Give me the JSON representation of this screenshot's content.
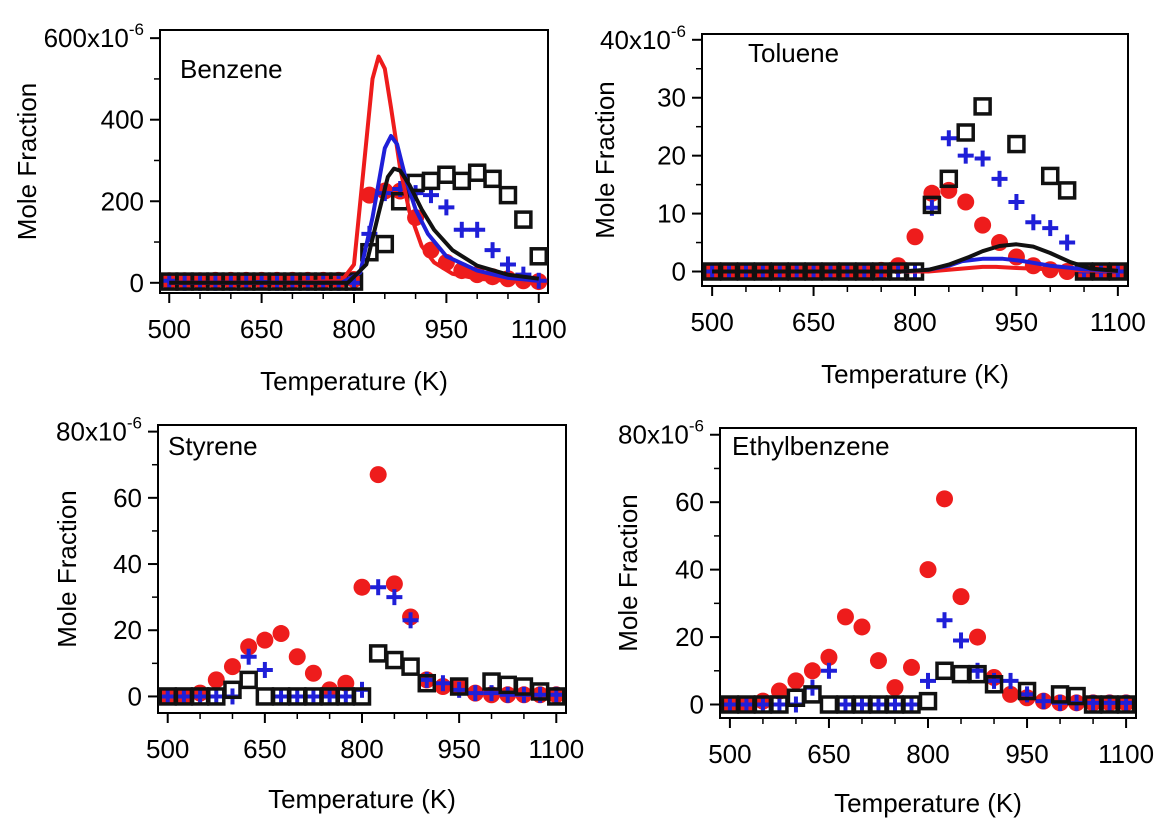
{
  "chart_data": [
    {
      "type": "scatter",
      "title": "Benzene",
      "xlabel": "Temperature (K)",
      "ylabel": "Mole Fraction",
      "xlim": [
        485,
        1115
      ],
      "ylim": [
        -25,
        620
      ],
      "xticks": [
        500,
        650,
        800,
        950,
        1100
      ],
      "xtick_labels": [
        "500",
        "650",
        "800",
        "950",
        "1100"
      ],
      "yticks": [
        0,
        200,
        400,
        600
      ],
      "ytick_labels": [
        "0",
        "200",
        "400",
        "600x10"
      ],
      "ytick_exponent": "-6",
      "series": [
        {
          "marker": "circle",
          "color": "#ee1c1c",
          "x": [
            500,
            525,
            550,
            575,
            600,
            625,
            650,
            675,
            700,
            725,
            750,
            775,
            800,
            825,
            850,
            875,
            900,
            925,
            950,
            975,
            1000,
            1025,
            1050,
            1075,
            1100
          ],
          "y": [
            5,
            5,
            5,
            6,
            6,
            6,
            6,
            6,
            6,
            6,
            6,
            6,
            8,
            215,
            225,
            225,
            160,
            80,
            50,
            30,
            20,
            15,
            10,
            5,
            3
          ]
        },
        {
          "marker": "plus",
          "color": "#1f1fd8",
          "x": [
            500,
            525,
            550,
            575,
            600,
            625,
            650,
            675,
            700,
            725,
            750,
            775,
            800,
            825,
            850,
            875,
            900,
            925,
            950,
            975,
            1000,
            1025,
            1050,
            1075,
            1100
          ],
          "y": [
            5,
            0,
            0,
            0,
            0,
            0,
            2,
            0,
            0,
            0,
            0,
            0,
            0,
            120,
            220,
            230,
            220,
            215,
            185,
            130,
            130,
            80,
            45,
            20,
            5
          ]
        },
        {
          "marker": "square",
          "color": "#111111",
          "x": [
            500,
            525,
            550,
            575,
            600,
            625,
            650,
            675,
            700,
            725,
            750,
            775,
            800,
            825,
            850,
            875,
            900,
            925,
            950,
            975,
            1000,
            1025,
            1050,
            1075,
            1100
          ],
          "y": [
            3,
            3,
            3,
            3,
            3,
            3,
            3,
            3,
            3,
            3,
            3,
            3,
            3,
            75,
            95,
            200,
            245,
            250,
            265,
            250,
            270,
            255,
            215,
            155,
            65
          ]
        },
        {
          "marker": "line",
          "color": "#ee1c1c",
          "x": [
            500,
            700,
            780,
            800,
            815,
            830,
            840,
            850,
            860,
            875,
            890,
            910,
            930,
            960,
            1000,
            1050,
            1100
          ],
          "y": [
            0,
            0,
            5,
            45,
            270,
            500,
            555,
            525,
            430,
            280,
            175,
            90,
            50,
            22,
            10,
            5,
            5
          ]
        },
        {
          "marker": "line",
          "color": "#1f1fd8",
          "x": [
            500,
            780,
            810,
            830,
            850,
            860,
            870,
            885,
            900,
            920,
            950,
            1000,
            1050,
            1100
          ],
          "y": [
            0,
            0,
            25,
            160,
            330,
            360,
            340,
            250,
            180,
            120,
            65,
            30,
            12,
            5
          ]
        },
        {
          "marker": "line",
          "color": "#111111",
          "x": [
            500,
            790,
            820,
            840,
            855,
            865,
            875,
            890,
            910,
            930,
            960,
            1000,
            1050,
            1100
          ],
          "y": [
            0,
            0,
            45,
            170,
            260,
            280,
            275,
            240,
            180,
            130,
            80,
            42,
            20,
            10
          ]
        }
      ]
    },
    {
      "type": "scatter",
      "title": "Toluene",
      "xlabel": "Temperature (K)",
      "ylabel": "Mole Fraction",
      "xlim": [
        485,
        1115
      ],
      "ylim": [
        -2.5,
        41
      ],
      "xticks": [
        500,
        650,
        800,
        950,
        1100
      ],
      "xtick_labels": [
        "500",
        "650",
        "800",
        "950",
        "1100"
      ],
      "yticks": [
        0,
        10,
        20,
        30,
        40
      ],
      "ytick_labels": [
        "0",
        "10",
        "20",
        "30",
        "40x10"
      ],
      "ytick_exponent": "-6",
      "series": [
        {
          "marker": "circle",
          "color": "#ee1c1c",
          "x": [
            500,
            525,
            550,
            575,
            600,
            625,
            650,
            675,
            700,
            725,
            750,
            775,
            800,
            825,
            850,
            875,
            900,
            925,
            950,
            975,
            1000,
            1025,
            1050,
            1075,
            1100
          ],
          "y": [
            0,
            0,
            0,
            0,
            0,
            0,
            0,
            0,
            0,
            0,
            0.2,
            1,
            6,
            13.5,
            14,
            12,
            8,
            5,
            2.5,
            1,
            0.3,
            0,
            0,
            0,
            0
          ]
        },
        {
          "marker": "plus",
          "color": "#1f1fd8",
          "x": [
            500,
            525,
            550,
            575,
            600,
            625,
            650,
            675,
            700,
            725,
            750,
            775,
            800,
            825,
            850,
            875,
            900,
            925,
            950,
            975,
            1000,
            1025,
            1050,
            1075,
            1100
          ],
          "y": [
            0,
            0,
            0,
            0,
            0,
            0,
            0,
            0,
            0,
            0,
            0,
            0,
            0,
            11,
            23,
            20,
            19.5,
            16,
            12,
            8.5,
            7.5,
            5,
            0,
            0,
            0
          ]
        },
        {
          "marker": "square",
          "color": "#111111",
          "x": [
            500,
            525,
            550,
            575,
            600,
            625,
            650,
            675,
            700,
            725,
            750,
            775,
            800,
            825,
            850,
            875,
            900,
            950,
            1000,
            1025,
            1050,
            1075,
            1100
          ],
          "y": [
            0,
            0,
            0,
            0,
            0,
            0,
            0,
            0,
            0,
            0,
            0,
            0,
            0,
            11.5,
            16,
            24,
            28.5,
            22,
            16.5,
            14,
            0,
            0,
            0
          ]
        },
        {
          "marker": "line",
          "color": "#ee1c1c",
          "x": [
            500,
            780,
            820,
            850,
            880,
            900,
            920,
            950,
            1000,
            1050,
            1100
          ],
          "y": [
            0,
            0,
            0,
            0.3,
            0.6,
            0.8,
            0.8,
            0.6,
            0.4,
            0.2,
            0.1
          ]
        },
        {
          "marker": "line",
          "color": "#1f1fd8",
          "x": [
            500,
            780,
            820,
            850,
            870,
            900,
            930,
            960,
            1000,
            1050,
            1100
          ],
          "y": [
            0,
            0,
            0.3,
            1,
            1.8,
            2.2,
            2.2,
            1.8,
            1,
            0.4,
            0.1
          ]
        },
        {
          "marker": "line",
          "color": "#111111",
          "x": [
            500,
            780,
            820,
            850,
            880,
            900,
            925,
            950,
            975,
            1000,
            1030,
            1060,
            1100
          ],
          "y": [
            0,
            0,
            0.3,
            1.2,
            2.5,
            3.5,
            4.4,
            4.7,
            4.3,
            3.2,
            1.6,
            0.5,
            0.1
          ]
        }
      ]
    },
    {
      "type": "scatter",
      "title": "Styrene",
      "xlabel": "Temperature (K)",
      "ylabel": "Mole Fraction",
      "xlim": [
        485,
        1115
      ],
      "ylim": [
        -5,
        82
      ],
      "xticks": [
        500,
        650,
        800,
        950,
        1100
      ],
      "xtick_labels": [
        "500",
        "650",
        "800",
        "950",
        "1100"
      ],
      "yticks": [
        0,
        20,
        40,
        60,
        80
      ],
      "ytick_labels": [
        "0",
        "20",
        "40",
        "60",
        "80x10"
      ],
      "ytick_exponent": "-6",
      "series": [
        {
          "marker": "circle",
          "color": "#ee1c1c",
          "x": [
            500,
            525,
            550,
            575,
            600,
            625,
            650,
            675,
            700,
            725,
            750,
            775,
            800,
            825,
            850,
            875,
            900,
            925,
            950,
            975,
            1000,
            1025,
            1050,
            1075,
            1100
          ],
          "y": [
            0,
            0,
            1,
            5,
            9,
            15,
            17,
            19,
            12,
            7,
            2,
            4,
            33,
            67,
            34,
            24,
            5,
            3,
            3,
            1,
            0.5,
            0.5,
            0.5,
            0.5,
            0.5
          ]
        },
        {
          "marker": "plus",
          "color": "#1f1fd8",
          "x": [
            500,
            525,
            550,
            575,
            600,
            625,
            650,
            675,
            700,
            725,
            750,
            775,
            800,
            825,
            850,
            875,
            900,
            925,
            950,
            975,
            1000,
            1025,
            1050,
            1075,
            1100
          ],
          "y": [
            0,
            0,
            0,
            0,
            0,
            12,
            8,
            0,
            0,
            0,
            0,
            0,
            2,
            33,
            30,
            23,
            5,
            4,
            2,
            1,
            1,
            0.5,
            0.5,
            0.5,
            0.5
          ]
        },
        {
          "marker": "square",
          "color": "#111111",
          "x": [
            500,
            525,
            550,
            575,
            600,
            625,
            650,
            675,
            700,
            725,
            750,
            775,
            800,
            825,
            850,
            875,
            900,
            950,
            1000,
            1025,
            1050,
            1075,
            1100
          ],
          "y": [
            0,
            0,
            0,
            0,
            2,
            5,
            0,
            0,
            0,
            0,
            0,
            0,
            0,
            13,
            11,
            9,
            4,
            3,
            4.5,
            3.5,
            3,
            1.5,
            0
          ]
        }
      ]
    },
    {
      "type": "scatter",
      "title": "Ethylbenzene",
      "xlabel": "Temperature (K)",
      "ylabel": "Mole Fraction",
      "xlim": [
        485,
        1115
      ],
      "ylim": [
        -4,
        82
      ],
      "xticks": [
        500,
        650,
        800,
        950,
        1100
      ],
      "xtick_labels": [
        "500",
        "650",
        "800",
        "950",
        "1100"
      ],
      "yticks": [
        0,
        20,
        40,
        60,
        80
      ],
      "ytick_labels": [
        "0",
        "20",
        "40",
        "60",
        "80x10"
      ],
      "ytick_exponent": "-6",
      "series": [
        {
          "marker": "circle",
          "color": "#ee1c1c",
          "x": [
            500,
            525,
            550,
            575,
            600,
            625,
            650,
            675,
            700,
            725,
            750,
            775,
            800,
            825,
            850,
            875,
            900,
            925,
            950,
            975,
            1000,
            1025,
            1050,
            1075,
            1100
          ],
          "y": [
            0,
            0,
            1,
            4,
            7,
            10,
            14,
            26,
            23,
            13,
            5,
            11,
            40,
            61,
            32,
            20,
            8,
            3,
            2,
            1,
            0.5,
            0.5,
            0.5,
            0.5,
            0.5
          ]
        },
        {
          "marker": "plus",
          "color": "#1f1fd8",
          "x": [
            500,
            525,
            550,
            575,
            600,
            625,
            650,
            675,
            700,
            725,
            750,
            775,
            800,
            825,
            850,
            875,
            900,
            925,
            950,
            975,
            1000,
            1025,
            1050,
            1075,
            1100
          ],
          "y": [
            0,
            0,
            0,
            0,
            0,
            5,
            10,
            0,
            0,
            0,
            0,
            0,
            7,
            25,
            19,
            10,
            7,
            7,
            3,
            1,
            0.5,
            0.5,
            0.5,
            0.5,
            0.5
          ]
        },
        {
          "marker": "square",
          "color": "#111111",
          "x": [
            500,
            525,
            550,
            575,
            600,
            625,
            650,
            675,
            700,
            725,
            750,
            775,
            800,
            825,
            850,
            875,
            900,
            950,
            1000,
            1025,
            1050,
            1075,
            1100
          ],
          "y": [
            0,
            0,
            0,
            0,
            2,
            3,
            0,
            0,
            0,
            0,
            0,
            0,
            1,
            10,
            9,
            9,
            6,
            4,
            3,
            2.5,
            0,
            0,
            0
          ]
        }
      ]
    }
  ]
}
